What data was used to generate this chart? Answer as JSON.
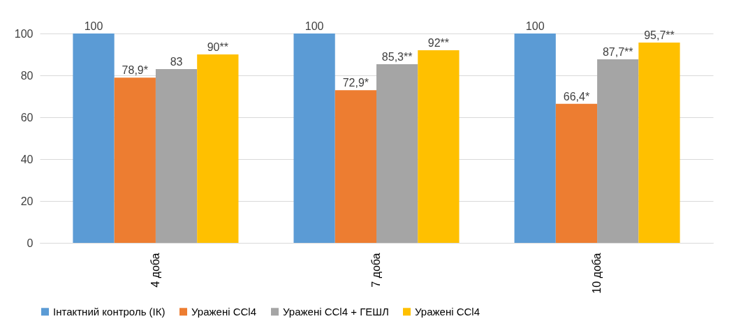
{
  "chart_data": {
    "type": "bar",
    "categories": [
      "4 доба",
      "7 доба",
      "10 доба"
    ],
    "series": [
      {
        "name": "Інтактний контроль (ІК)",
        "color": "#5b9bd5",
        "values": [
          100,
          100,
          100
        ],
        "value_labels": [
          "100",
          "100",
          "100"
        ]
      },
      {
        "name": "Уражені CCl4",
        "color": "#ed7d31",
        "values": [
          78.9,
          72.9,
          66.4
        ],
        "value_labels": [
          "78,9*",
          "72,9*",
          "66,4*"
        ]
      },
      {
        "name": "Уражені CCl4 + ГЕШЛ",
        "color": "#a5a5a5",
        "values": [
          83,
          85.3,
          87.7
        ],
        "value_labels": [
          "83",
          "85,3**",
          "87,7**"
        ]
      },
      {
        "name": "Уражені CCl4",
        "color": "#ffc000",
        "values": [
          90,
          92,
          95.7
        ],
        "value_labels": [
          "90**",
          "92**",
          "95,7**"
        ]
      }
    ],
    "ylim": [
      0,
      100
    ],
    "yticks": [
      0,
      20,
      40,
      60,
      80,
      100
    ],
    "grid": "y",
    "legend": "bottom"
  }
}
